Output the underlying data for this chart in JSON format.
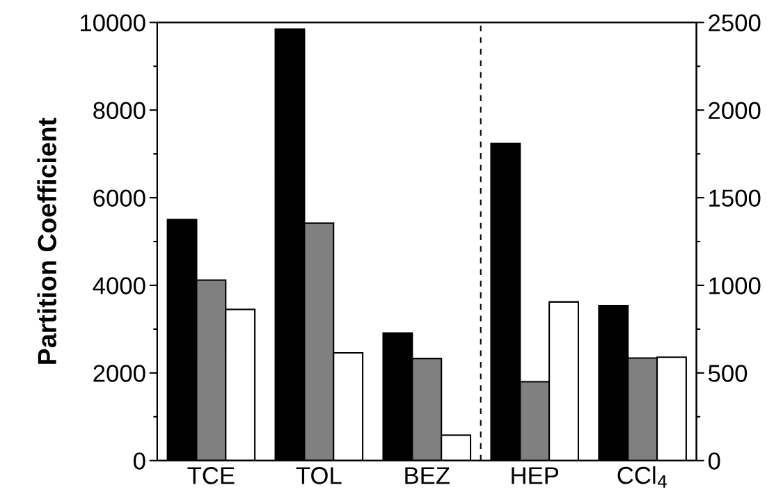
{
  "chart_data": {
    "type": "bar",
    "ylabel": "Partition Coefficient",
    "categories": [
      "TCE",
      "TOL",
      "BEZ",
      "HEP",
      "CCl$_{4}$"
    ],
    "series": [
      {
        "color": "#000000",
        "values": [
          5500,
          9850,
          2910,
          null,
          null
        ]
      },
      {
        "color": "#808080",
        "values": [
          4120,
          5420,
          2330,
          null,
          null
        ]
      },
      {
        "color": "#ffffff",
        "values": [
          3450,
          2460,
          580,
          null,
          null
        ]
      },
      {
        "color": "#000000",
        "axis": "y2",
        "values": [
          null,
          null,
          null,
          1810,
          885
        ]
      },
      {
        "color": "#808080",
        "axis": "y2",
        "values": [
          null,
          null,
          null,
          450,
          585
        ]
      },
      {
        "color": "#ffffff",
        "axis": "y2",
        "values": [
          null,
          null,
          null,
          905,
          590
        ]
      }
    ],
    "ylim": [
      0,
      10000
    ],
    "yticks": [
      0,
      {
        "value": 1000,
        "label": null
      },
      2000,
      {
        "value": 3000,
        "label": null
      },
      4000,
      {
        "value": 5000,
        "label": null
      },
      6000,
      {
        "value": 7000,
        "label": null
      },
      8000,
      {
        "value": 9000,
        "label": null
      },
      10000
    ],
    "y2lim": [
      0,
      2500
    ],
    "y2ticks": [
      0,
      {
        "value": 250,
        "label": null
      },
      500,
      {
        "value": 750,
        "label": null
      },
      1000,
      {
        "value": 1250,
        "label": null
      },
      1500,
      {
        "value": 1750,
        "label": null
      },
      2000,
      {
        "value": 2250,
        "label": null
      },
      2500
    ],
    "grid": false,
    "legend": false
  }
}
